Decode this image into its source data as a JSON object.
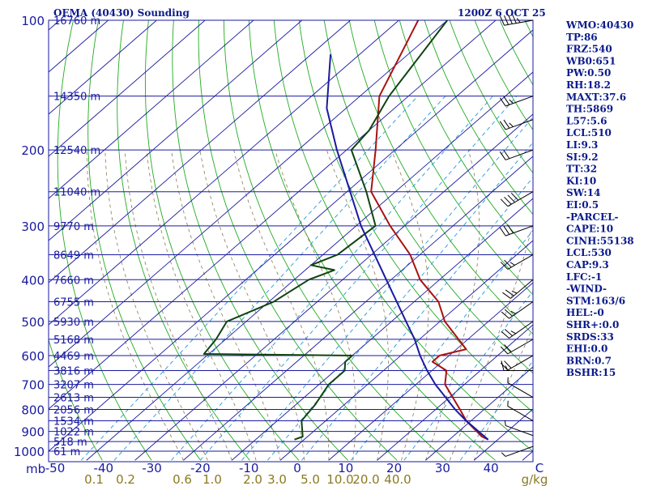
{
  "header": {
    "station": "OEMA (40430) Sounding",
    "datetime": "1200Z  6 OCT 25"
  },
  "colors": {
    "frame": "#1a1aa0",
    "isobar": "#1a1aa0",
    "isotherm": "#1a1aa0",
    "dry_adiabat": "#22aa22",
    "moist_adiabat": "#8a7a55",
    "mixing_ratio": "#2299dd",
    "temperature": "#aa1111",
    "dewpoint": "#114411",
    "parcel": "#1a1aa0",
    "wind": "#000000"
  },
  "chart_data": {
    "type": "line",
    "title": "OEMA (40430) Sounding",
    "xlabel": "C",
    "ylabel": "mb",
    "xlim": [
      -50,
      50
    ],
    "ylim": [
      1000,
      100
    ],
    "pressure_ticks": [
      "100",
      "200",
      "300",
      "400",
      "500",
      "600",
      "700",
      "800",
      "900",
      "1000"
    ],
    "temp_ticks": [
      "-50",
      "-40",
      "-30",
      "-20",
      "-10",
      "0",
      "10",
      "20",
      "30",
      "40",
      "C"
    ],
    "mixing_ratio_labels": [
      "0.1",
      "0.2",
      "0.6",
      "1.0",
      "2.0",
      "3.0",
      "5.0",
      "10.0",
      "20.0",
      "40.0",
      "g/kg"
    ],
    "height_labels": [
      {
        "p": 100,
        "h": "16760 m"
      },
      {
        "p": 150,
        "h": "14350 m"
      },
      {
        "p": 200,
        "h": "12540 m"
      },
      {
        "p": 250,
        "h": "11040 m"
      },
      {
        "p": 300,
        "h": "9770 m"
      },
      {
        "p": 350,
        "h": "8649 m"
      },
      {
        "p": 400,
        "h": "7660 m"
      },
      {
        "p": 450,
        "h": "6755 m"
      },
      {
        "p": 500,
        "h": "5930 m"
      },
      {
        "p": 550,
        "h": "5168 m"
      },
      {
        "p": 600,
        "h": "4469 m"
      },
      {
        "p": 650,
        "h": "3816 m"
      },
      {
        "p": 700,
        "h": "3207 m"
      },
      {
        "p": 750,
        "h": "2613 m"
      },
      {
        "p": 800,
        "h": "2056 m"
      },
      {
        "p": 850,
        "h": "1534 m"
      },
      {
        "p": 900,
        "h": "1022 m"
      },
      {
        "p": 950,
        "h": "518 m"
      },
      {
        "p": 1000,
        "h": "61 m"
      }
    ],
    "series": [
      {
        "name": "Temperature",
        "points": [
          [
            940,
            38
          ],
          [
            925,
            36
          ],
          [
            850,
            29
          ],
          [
            800,
            25
          ],
          [
            700,
            16
          ],
          [
            650,
            13
          ],
          [
            620,
            8
          ],
          [
            600,
            8
          ],
          [
            580,
            12
          ],
          [
            500,
            1
          ],
          [
            450,
            -5
          ],
          [
            400,
            -14
          ],
          [
            350,
            -22
          ],
          [
            300,
            -33
          ],
          [
            250,
            -45
          ],
          [
            200,
            -54
          ],
          [
            150,
            -66
          ],
          [
            100,
            -76
          ]
        ]
      },
      {
        "name": "Dewpoint",
        "points": [
          [
            940,
            -2
          ],
          [
            925,
            -1
          ],
          [
            850,
            -5
          ],
          [
            780,
            -6
          ],
          [
            700,
            -8
          ],
          [
            650,
            -8
          ],
          [
            620,
            -10
          ],
          [
            600,
            -10
          ],
          [
            595,
            -41
          ],
          [
            550,
            -42
          ],
          [
            500,
            -44
          ],
          [
            450,
            -39
          ],
          [
            400,
            -37
          ],
          [
            380,
            -34
          ],
          [
            370,
            -40
          ],
          [
            350,
            -37
          ],
          [
            300,
            -36
          ],
          [
            250,
            -46
          ],
          [
            200,
            -59
          ],
          [
            180,
            -60
          ],
          [
            150,
            -64
          ],
          [
            100,
            -70
          ]
        ]
      },
      {
        "name": "Parcel",
        "points": [
          [
            940,
            38
          ],
          [
            850,
            29
          ],
          [
            800,
            24
          ],
          [
            700,
            14
          ],
          [
            650,
            9
          ],
          [
            600,
            4
          ],
          [
            550,
            -1
          ],
          [
            500,
            -7
          ],
          [
            400,
            -21
          ],
          [
            300,
            -39
          ],
          [
            200,
            -62
          ],
          [
            160,
            -74
          ],
          [
            120,
            -86
          ]
        ]
      }
    ]
  },
  "indices": [
    "WMO:40430",
    "TP:86",
    "FRZ:540",
    "WB0:651",
    "PW:0.50",
    "RH:18.2",
    "MAXT:37.6",
    "TH:5869",
    "L57:5.6",
    "LCL:510",
    "LI:9.3",
    "SI:9.2",
    "TT:32",
    "KI:10",
    "SW:14",
    "EI:0.5",
    "-PARCEL-",
    "CAPE:10",
    "CINH:55138",
    "LCL:530",
    "CAP:9.3",
    "LFC:-1",
    "-WIND-",
    "STM:163/6",
    "HEL:-0",
    "SHR+:0.0",
    "SRDS:33",
    "EHI:0.0",
    "BRN:0.7",
    "BSHR:15"
  ],
  "wind_barbs": [
    {
      "p": 975,
      "dir": 250,
      "spd": 5
    },
    {
      "p": 920,
      "dir": 290,
      "spd": 5
    },
    {
      "p": 850,
      "dir": 300,
      "spd": 5
    },
    {
      "p": 750,
      "dir": 300,
      "spd": 5
    },
    {
      "p": 650,
      "dir": 270,
      "spd": 15
    },
    {
      "p": 600,
      "dir": 240,
      "spd": 20
    },
    {
      "p": 550,
      "dir": 240,
      "spd": 20
    },
    {
      "p": 500,
      "dir": 235,
      "spd": 25
    },
    {
      "p": 450,
      "dir": 235,
      "spd": 25
    },
    {
      "p": 400,
      "dir": 230,
      "spd": 25
    },
    {
      "p": 350,
      "dir": 240,
      "spd": 25
    },
    {
      "p": 300,
      "dir": 250,
      "spd": 30
    },
    {
      "p": 250,
      "dir": 240,
      "spd": 40
    },
    {
      "p": 200,
      "dir": 250,
      "spd": 20
    },
    {
      "p": 170,
      "dir": 250,
      "spd": 25
    },
    {
      "p": 150,
      "dir": 250,
      "spd": 25
    },
    {
      "p": 100,
      "dir": 260,
      "spd": 45
    }
  ]
}
